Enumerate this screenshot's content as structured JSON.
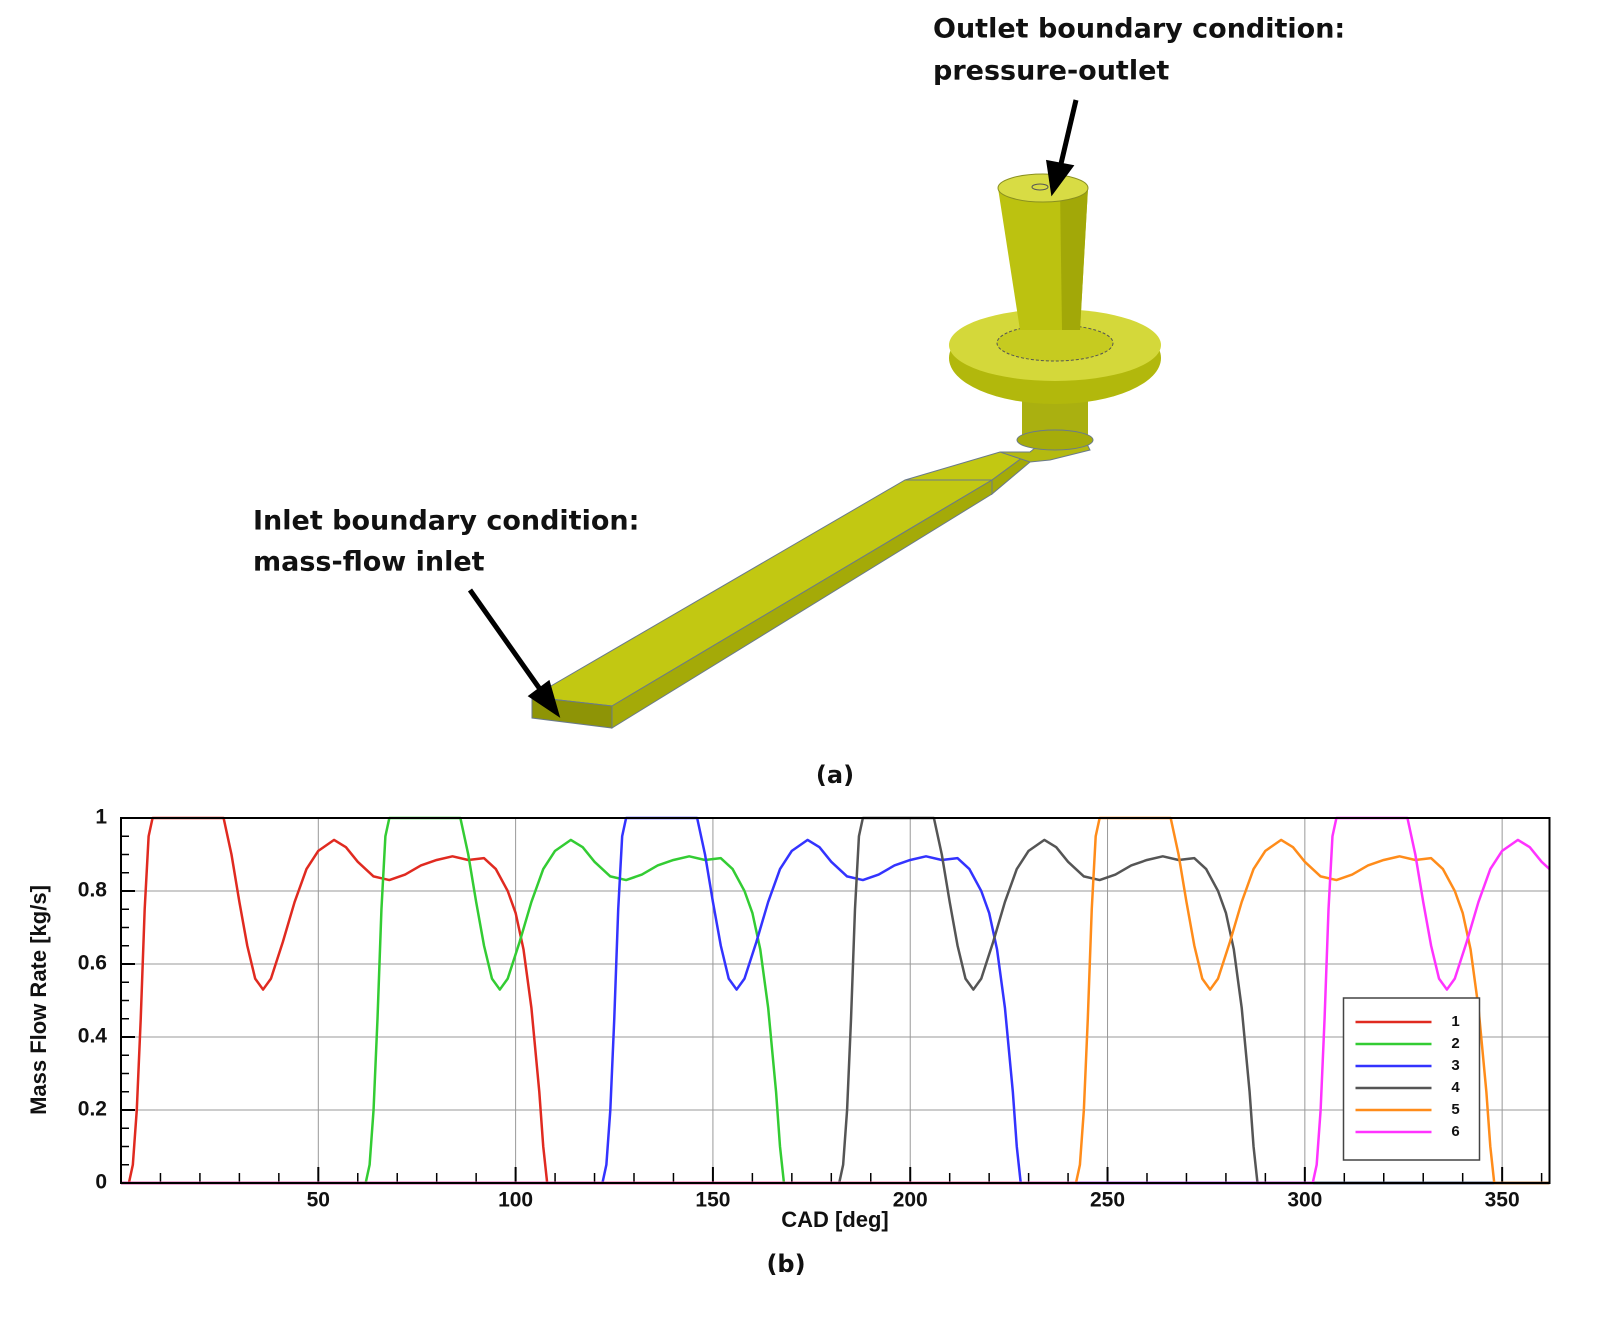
{
  "panel_a": {
    "outlet_label": [
      "Outlet boundary condition:",
      "pressure-outlet"
    ],
    "inlet_label": [
      "Inlet boundary condition:",
      "mass-flow inlet"
    ],
    "caption": "(a)"
  },
  "chart_data": {
    "type": "line",
    "caption": "(b)",
    "x_label": "CAD [deg]",
    "y_label": "Mass Flow Rate [kg/s]",
    "xlim": [
      0,
      362
    ],
    "ylim": [
      0,
      1
    ],
    "xticks": [
      50,
      100,
      150,
      200,
      250,
      300,
      350
    ],
    "yticks": [
      0,
      0.2,
      0.4,
      0.6,
      0.8,
      1
    ],
    "xminorticks": [
      10,
      20,
      30,
      40,
      60,
      70,
      80,
      90,
      110,
      120,
      130,
      140,
      160,
      170,
      180,
      190,
      210,
      220,
      230,
      240,
      260,
      270,
      280,
      290,
      310,
      320,
      330,
      340,
      360
    ],
    "yminorticks": [
      0.05,
      0.1,
      0.15,
      0.25,
      0.3,
      0.35,
      0.45,
      0.5,
      0.55,
      0.65,
      0.7,
      0.75,
      0.85,
      0.9,
      0.95
    ],
    "grid": true,
    "legend": "lower right",
    "series": [
      {
        "name": "1",
        "color": "#e02a20",
        "x": [
          0,
          2,
          3,
          4,
          5,
          6,
          7,
          8,
          26,
          28,
          30,
          32,
          34,
          36,
          38,
          41,
          44,
          47,
          50,
          54,
          57,
          60,
          64,
          68,
          72,
          76,
          80,
          84,
          88,
          92,
          95,
          98,
          100,
          102,
          104,
          106,
          107,
          108,
          362
        ],
        "values": [
          0,
          0,
          0.05,
          0.2,
          0.45,
          0.75,
          0.95,
          1,
          1,
          0.9,
          0.77,
          0.65,
          0.56,
          0.53,
          0.56,
          0.66,
          0.77,
          0.86,
          0.91,
          0.94,
          0.92,
          0.88,
          0.84,
          0.83,
          0.845,
          0.87,
          0.885,
          0.895,
          0.885,
          0.89,
          0.86,
          0.8,
          0.74,
          0.64,
          0.48,
          0.25,
          0.1,
          0,
          0
        ]
      },
      {
        "name": "2",
        "color": "#33cc33",
        "x": [
          0,
          62,
          63,
          64,
          65,
          66,
          67,
          68,
          86,
          88,
          90,
          92,
          94,
          96,
          98,
          101,
          104,
          107,
          110,
          114,
          117,
          120,
          124,
          128,
          132,
          136,
          140,
          144,
          148,
          152,
          155,
          158,
          160,
          162,
          164,
          166,
          167,
          168,
          362
        ],
        "values": [
          0,
          0,
          0.05,
          0.2,
          0.45,
          0.75,
          0.95,
          1,
          1,
          0.9,
          0.77,
          0.65,
          0.56,
          0.53,
          0.56,
          0.66,
          0.77,
          0.86,
          0.91,
          0.94,
          0.92,
          0.88,
          0.84,
          0.83,
          0.845,
          0.87,
          0.885,
          0.895,
          0.885,
          0.89,
          0.86,
          0.8,
          0.74,
          0.64,
          0.48,
          0.25,
          0.1,
          0,
          0
        ]
      },
      {
        "name": "3",
        "color": "#3333ff",
        "x": [
          0,
          122,
          123,
          124,
          125,
          126,
          127,
          128,
          146,
          148,
          150,
          152,
          154,
          156,
          158,
          161,
          164,
          167,
          170,
          174,
          177,
          180,
          184,
          188,
          192,
          196,
          200,
          204,
          208,
          212,
          215,
          218,
          220,
          222,
          224,
          226,
          227,
          228,
          362
        ],
        "values": [
          0,
          0,
          0.05,
          0.2,
          0.45,
          0.75,
          0.95,
          1,
          1,
          0.9,
          0.77,
          0.65,
          0.56,
          0.53,
          0.56,
          0.66,
          0.77,
          0.86,
          0.91,
          0.94,
          0.92,
          0.88,
          0.84,
          0.83,
          0.845,
          0.87,
          0.885,
          0.895,
          0.885,
          0.89,
          0.86,
          0.8,
          0.74,
          0.64,
          0.48,
          0.25,
          0.1,
          0,
          0
        ]
      },
      {
        "name": "4",
        "color": "#555555",
        "x": [
          0,
          182,
          183,
          184,
          185,
          186,
          187,
          188,
          206,
          208,
          210,
          212,
          214,
          216,
          218,
          221,
          224,
          227,
          230,
          234,
          237,
          240,
          244,
          248,
          252,
          256,
          260,
          264,
          268,
          272,
          275,
          278,
          280,
          282,
          284,
          286,
          287,
          288,
          362
        ],
        "values": [
          0,
          0,
          0.05,
          0.2,
          0.45,
          0.75,
          0.95,
          1,
          1,
          0.9,
          0.77,
          0.65,
          0.56,
          0.53,
          0.56,
          0.66,
          0.77,
          0.86,
          0.91,
          0.94,
          0.92,
          0.88,
          0.84,
          0.83,
          0.845,
          0.87,
          0.885,
          0.895,
          0.885,
          0.89,
          0.86,
          0.8,
          0.74,
          0.64,
          0.48,
          0.25,
          0.1,
          0,
          0
        ]
      },
      {
        "name": "5",
        "color": "#ff8c1a",
        "x": [
          0,
          242,
          243,
          244,
          245,
          246,
          247,
          248,
          266,
          268,
          270,
          272,
          274,
          276,
          278,
          281,
          284,
          287,
          290,
          294,
          297,
          300,
          304,
          308,
          312,
          316,
          320,
          324,
          328,
          332,
          335,
          338,
          340,
          342,
          344,
          346,
          347,
          348,
          362
        ],
        "values": [
          0,
          0,
          0.05,
          0.2,
          0.45,
          0.75,
          0.95,
          1,
          1,
          0.9,
          0.77,
          0.65,
          0.56,
          0.53,
          0.56,
          0.66,
          0.77,
          0.86,
          0.91,
          0.94,
          0.92,
          0.88,
          0.84,
          0.83,
          0.845,
          0.87,
          0.885,
          0.895,
          0.885,
          0.89,
          0.86,
          0.8,
          0.74,
          0.64,
          0.48,
          0.25,
          0.1,
          0,
          0
        ]
      },
      {
        "name": "6",
        "color": "#ff33ff",
        "x": [
          0,
          302,
          303,
          304,
          305,
          306,
          307,
          308,
          326,
          328,
          330,
          332,
          334,
          336,
          338,
          341,
          344,
          347,
          350,
          354,
          357,
          360,
          362
        ],
        "values": [
          0,
          0,
          0.05,
          0.2,
          0.45,
          0.75,
          0.95,
          1,
          1,
          0.9,
          0.77,
          0.65,
          0.56,
          0.53,
          0.56,
          0.66,
          0.77,
          0.86,
          0.91,
          0.94,
          0.92,
          0.88,
          0.86
        ]
      }
    ]
  }
}
